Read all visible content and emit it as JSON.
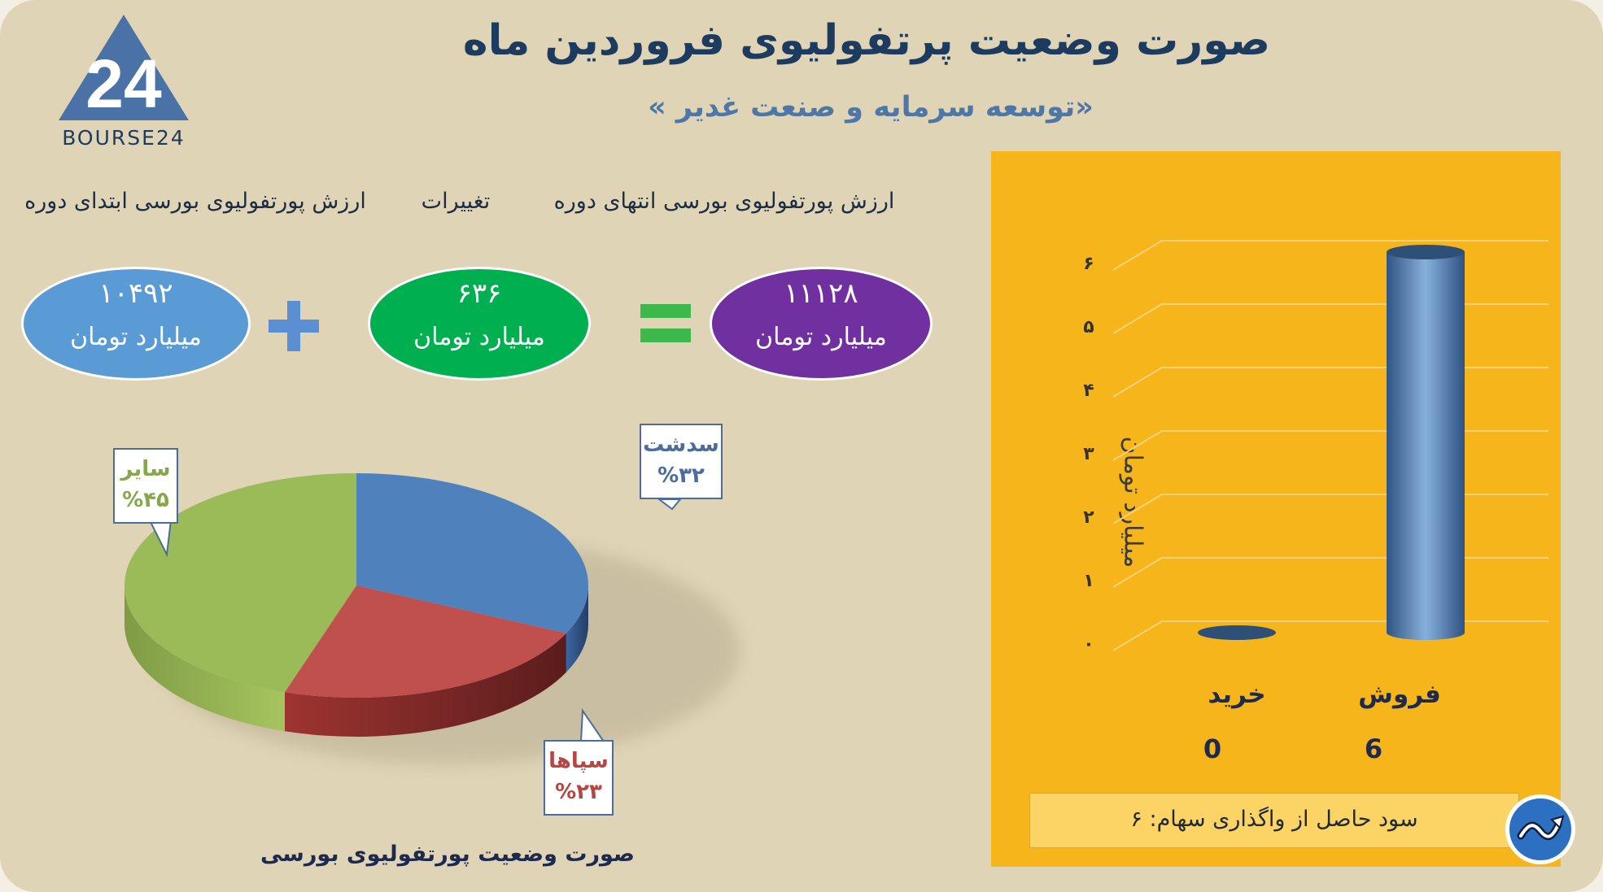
{
  "header": {
    "title": "صورت وضعیت پرتفولیوی فروردین ماه",
    "subtitle": "«توسعه سرمایه و صنعت غدیر »",
    "logo_text": "BOURSE24",
    "logo_mark": "24"
  },
  "equation": {
    "start_label": "ارزش پورتفولیوی بورسی ابتدای دوره",
    "change_label": "تغییرات",
    "end_label": "ارزش پورتفولیوی بورسی انتهای دوره",
    "start_value": "۱۰۴۹۲",
    "change_value": "۶۳۶",
    "end_value": "۱۱۱۲۸",
    "unit": "میلیارد تومان",
    "start_color": "#5b9bd5",
    "change_color": "#00b050",
    "end_color": "#7030a0",
    "plus_icon": "plus-icon",
    "equals_icon": "equals-icon"
  },
  "pie": {
    "caption": "صورت وضعیت پورتفولیوی بورسی",
    "labels": {
      "a_name": "سدشت",
      "a_pct": "%۳۲",
      "b_name": "سپاها",
      "b_pct": "%۲۳",
      "c_name": "سایر",
      "c_pct": "%۴۵"
    }
  },
  "bar": {
    "ylabel": "میلیارد تومان",
    "ticks": [
      "۰",
      "۱",
      "۲",
      "۳",
      "۴",
      "۵",
      "۶"
    ],
    "cat_buy": "خرید",
    "cat_sell": "فروش",
    "val_buy": "0",
    "val_sell": "6",
    "summary": "سود حاصل از واگذاری سهام: ۶",
    "badge_icon": "trend-badge-icon"
  },
  "chart_data": [
    {
      "type": "pie",
      "title": "صورت وضعیت پورتفولیوی بورسی",
      "slices": [
        {
          "label": "سدشت",
          "value": 32,
          "color": "#4f81bd"
        },
        {
          "label": "سپاها",
          "value": 23,
          "color": "#c0504d"
        },
        {
          "label": "سایر",
          "value": 45,
          "color": "#9bbb59"
        }
      ]
    },
    {
      "type": "bar",
      "categories": [
        "فروش",
        "خرید"
      ],
      "values": [
        6,
        0
      ],
      "ylabel": "میلیارد تومان",
      "ylim": [
        0,
        6
      ],
      "grid": true,
      "color": "#4f81bd"
    }
  ]
}
